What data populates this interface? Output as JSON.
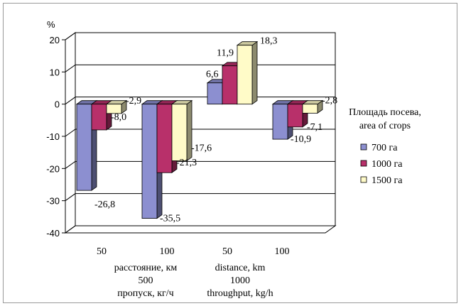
{
  "chart_data": {
    "type": "bar",
    "y_unit_label": "%",
    "ylim": [
      -40,
      20
    ],
    "yticks": [
      -40,
      -30,
      -20,
      -10,
      0,
      10,
      20
    ],
    "grid": true,
    "legend_position": "right",
    "legend_title": [
      "Площадь посева,",
      "area of crops"
    ],
    "categories": [
      "50",
      "100",
      "50",
      "100"
    ],
    "group_labels": {
      "line1": [
        "расстояние, км",
        "distance, km"
      ],
      "line2": [
        "500",
        "1000"
      ],
      "line3": [
        "пропуск, кг/ч",
        "throughput, kg/h"
      ]
    },
    "series": [
      {
        "name": "700 га",
        "color": "#8c8fd0",
        "values": [
          -26.8,
          -35.5,
          6.6,
          -10.9
        ],
        "labels": [
          "-26,8",
          "-35,5",
          "6,6",
          "-10,9"
        ]
      },
      {
        "name": "1000 га",
        "color": "#b8306a",
        "values": [
          -8.0,
          -21.3,
          11.9,
          -7.1
        ],
        "labels": [
          "-8,0",
          "-21,3",
          "11,9",
          "-7,1"
        ]
      },
      {
        "name": "1500 га",
        "color": "#fffbc8",
        "values": [
          -2.9,
          -17.6,
          18.3,
          -2.8
        ],
        "labels": [
          "-2,9",
          "-17,6",
          "18,3",
          "-2,8"
        ]
      }
    ]
  }
}
